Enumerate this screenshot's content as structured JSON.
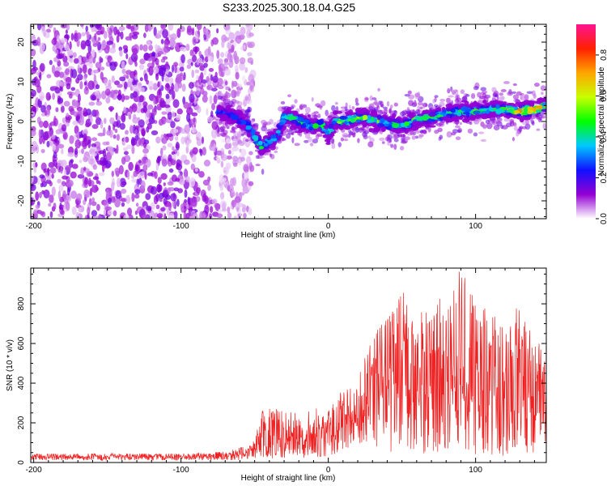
{
  "title": "S233.2025.300.18.04.G25",
  "chart_data": [
    {
      "type": "heatmap",
      "xlabel": "Height of straight line (km)",
      "ylabel": "Frequency (Hz)",
      "xlim": [
        -202,
        148
      ],
      "ylim": [
        -24.5,
        24.5
      ],
      "xticks": [
        -200,
        -100,
        0,
        100
      ],
      "yticks": [
        -20,
        -10,
        0,
        10,
        20
      ],
      "colorbar": {
        "label": "Normalized spectral amplitude",
        "range": [
          0,
          0.95
        ],
        "ticks": [
          0,
          0.2,
          0.4,
          0.6,
          0.8
        ],
        "tick_labels": [
          "0.0",
          "0.2",
          "0.4",
          "0.6",
          "0.8"
        ],
        "colors": [
          "#ffffff",
          "#9400d3",
          "#1010ff",
          "#00c8ff",
          "#00ff00",
          "#c8ff00",
          "#ffa500",
          "#ff2000",
          "#ff1493"
        ]
      },
      "ridge": {
        "x": [
          -75,
          -65,
          -55,
          -50,
          -45,
          -40,
          -35,
          -30,
          -25,
          -20,
          -15,
          -10,
          -5,
          0,
          5,
          10,
          20,
          30,
          40,
          50,
          60,
          70,
          80,
          90,
          100,
          110,
          120,
          130,
          140,
          148
        ],
        "frequency": [
          2.5,
          1.5,
          -1,
          -4,
          -6.5,
          -5,
          -4,
          1,
          1,
          0,
          -0.5,
          -1.5,
          -0.5,
          -3,
          0,
          0,
          1,
          0.5,
          -0.5,
          -1,
          0.5,
          1,
          2,
          2.5,
          2.5,
          3,
          3,
          2.5,
          3,
          4
        ],
        "peak_amplitude": [
          0.3,
          0.3,
          0.35,
          0.45,
          0.5,
          0.45,
          0.4,
          0.45,
          0.5,
          0.55,
          0.5,
          0.5,
          0.45,
          0.45,
          0.55,
          0.6,
          0.7,
          0.6,
          0.5,
          0.5,
          0.55,
          0.5,
          0.55,
          0.5,
          0.55,
          0.5,
          0.6,
          0.8,
          0.85,
          0.6
        ]
      },
      "noise_region": {
        "x": [
          -202,
          -55
        ],
        "amplitude": 0.15
      }
    },
    {
      "type": "line",
      "xlabel": "Height of straight line (km)",
      "ylabel": "SNR (10 * v/v)",
      "xlim": [
        -202,
        148
      ],
      "ylim": [
        0,
        980
      ],
      "xticks": [
        -200,
        -100,
        0,
        100
      ],
      "yticks": [
        0,
        200,
        400,
        600,
        800
      ],
      "series": [
        {
          "name": "SNR",
          "color": "#ee2222",
          "envelope": {
            "x": [
              -202,
              -150,
              -100,
              -70,
              -60,
              -50,
              -45,
              -40,
              -35,
              -30,
              -20,
              -10,
              0,
              10,
              20,
              30,
              40,
              50,
              60,
              70,
              80,
              90,
              100,
              110,
              120,
              130,
              140,
              148
            ],
            "max": [
              45,
              45,
              45,
              55,
              75,
              110,
              280,
              300,
              270,
              260,
              250,
              280,
              270,
              380,
              420,
              650,
              750,
              880,
              760,
              820,
              830,
              980,
              820,
              760,
              700,
              820,
              700,
              500
            ],
            "min": [
              10,
              10,
              10,
              12,
              12,
              15,
              20,
              20,
              20,
              20,
              20,
              25,
              30,
              60,
              80,
              60,
              50,
              40,
              50,
              40,
              50,
              60,
              40,
              40,
              30,
              40,
              50,
              100
            ]
          }
        }
      ]
    }
  ]
}
